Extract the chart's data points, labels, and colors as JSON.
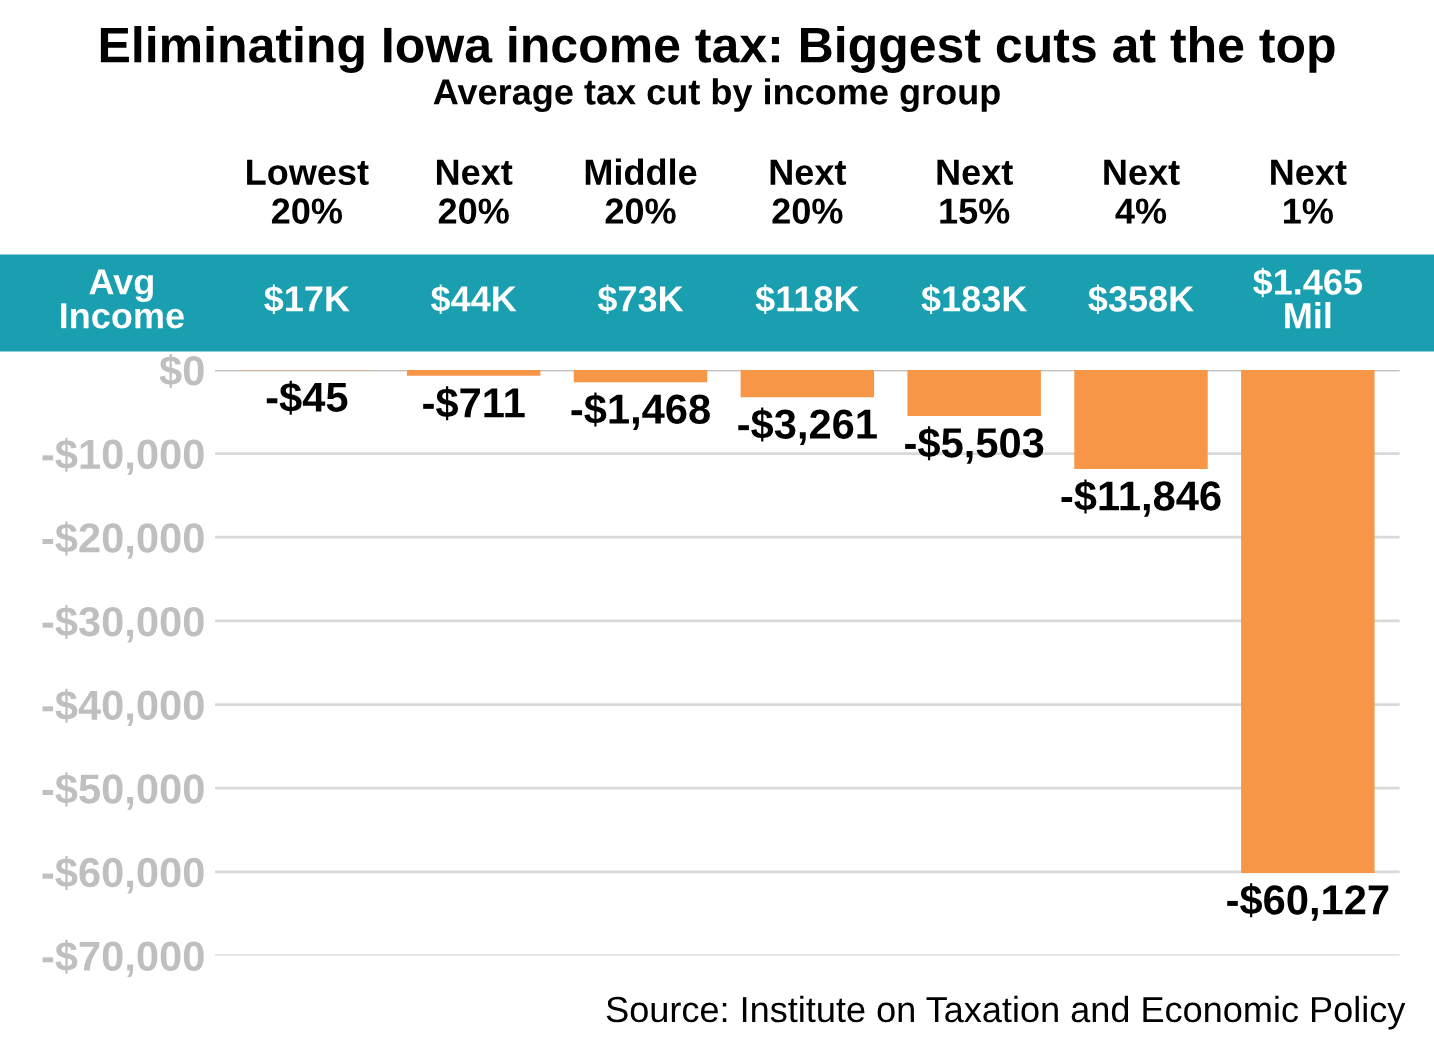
{
  "chart_data": {
    "type": "bar",
    "title": "Eliminating Iowa income tax: Biggest cuts at the top",
    "subtitle": "Average tax cut by income group",
    "categories": [
      "Lowest\n20%",
      "Next\n20%",
      "Middle\n20%",
      "Next\n20%",
      "Next\n15%",
      "Next\n4%",
      "Next\n1%"
    ],
    "values": [
      -45,
      -711,
      -1468,
      -3261,
      -5503,
      -11846,
      -60127
    ],
    "value_labels": [
      "-$45",
      "-$711",
      "-$1,468",
      "-$3,261",
      "-$5,503",
      "-$11,846",
      "-$60,127"
    ],
    "color": "#f79646",
    "ylim": [
      -70000,
      0
    ],
    "yticks": [
      {
        "value": 0,
        "label": "$0"
      },
      {
        "value": -10000,
        "label": "-$10,000"
      },
      {
        "value": -20000,
        "label": "-$20,000"
      },
      {
        "value": -30000,
        "label": "-$30,000"
      },
      {
        "value": -40000,
        "label": "-$40,000"
      },
      {
        "value": -50000,
        "label": "-$50,000"
      },
      {
        "value": -60000,
        "label": "-$60,000"
      },
      {
        "value": -70000,
        "label": "-$70,000"
      }
    ],
    "grid": "y",
    "legend": false,
    "annotations": [
      "Avg\nIncome",
      "$17K",
      "$44K",
      "$73K",
      "$118K",
      "$183K",
      "$358K",
      "$1.465\nMil",
      "Source: Institute on Taxation and Economic Policy"
    ]
  }
}
